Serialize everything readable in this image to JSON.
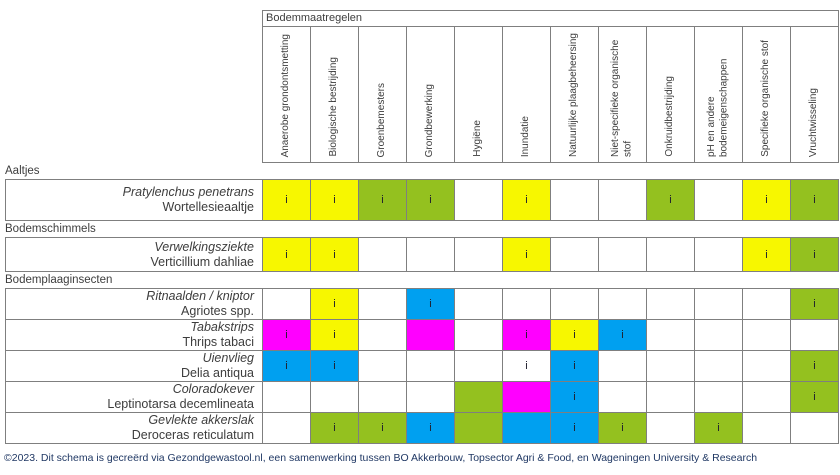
{
  "chart_data": {
    "type": "heatmap",
    "title": "Bodemmaatregelen",
    "info_marker": "i",
    "colors": {
      "Y": "#f7f700",
      "G": "#94c11f",
      "B": "#00a0f0",
      "M": "#ff00ff",
      "W": "#ffffff"
    },
    "columns": [
      "Anaerobe grondontsmetting",
      "Biologische bestrijding",
      "Groenbemesters",
      "Grondbewerking",
      "Hygiëne",
      "Inundatie",
      "Natuurlijke plaagbeheersing",
      "Niet-specifieke organische stof",
      "Onkruidbestrijding",
      "pH en andere bodemeigenschappen",
      "Specifieke organische stof",
      "Vruchtwisseling"
    ],
    "groups": [
      {
        "label": "Aaltjes",
        "rows": [
          {
            "name_latin": "Pratylenchus penetrans",
            "name_common": "Wortellesieaaltje",
            "cells": [
              "Yi",
              "Yi",
              "Gi",
              "Gi",
              "",
              "Yi",
              "",
              "",
              "Gi",
              "",
              "Yi",
              "Gi"
            ]
          }
        ]
      },
      {
        "label": "Bodemschimmels",
        "rows": [
          {
            "name_latin": "Verwelkingsziekte",
            "name_common": "Verticillium dahliae",
            "cells": [
              "Yi",
              "Yi",
              "",
              "",
              "",
              "Yi",
              "",
              "",
              "",
              "",
              "Yi",
              "Gi"
            ]
          }
        ]
      },
      {
        "label": "Bodemplaaginsecten",
        "rows": [
          {
            "name_latin": "Ritnaalden / kniptor",
            "name_common": "Agriotes spp.",
            "cells": [
              "",
              "Yi",
              "",
              "Bi",
              "",
              "",
              "",
              "",
              "",
              "",
              "",
              "Gi"
            ]
          },
          {
            "name_latin": "Tabakstrips",
            "name_common": "Thrips tabaci",
            "cells": [
              "Mi",
              "Yi",
              "",
              "M",
              "",
              "Mi",
              "Yi",
              "Bi",
              "",
              "",
              "",
              ""
            ]
          },
          {
            "name_latin": "Uienvlieg",
            "name_common": "Delia antiqua",
            "cells": [
              "Bi",
              "Bi",
              "",
              "",
              "",
              "i",
              "Bi",
              "",
              "",
              "",
              "",
              "Gi"
            ]
          },
          {
            "name_latin": "Coloradokever",
            "name_common": "Leptinotarsa decemlineata",
            "cells": [
              "",
              "",
              "",
              "",
              "G",
              "M",
              "Bi",
              "",
              "",
              "",
              "",
              "Gi"
            ]
          },
          {
            "name_latin": "Gevlekte akkerslak",
            "name_common": "Deroceras reticulatum",
            "cells": [
              "",
              "Gi",
              "Gi",
              "Bi",
              "G",
              "B",
              "Bi",
              "Gi",
              "",
              "Gi",
              "",
              ""
            ]
          }
        ]
      }
    ]
  },
  "footer": {
    "text": "©2023. Dit schema is gecreërd via Gezondgewastool.nl, een samenwerking tussen BO Akkerbouw, Topsector Agri & Food, en Wageningen University & Research"
  }
}
